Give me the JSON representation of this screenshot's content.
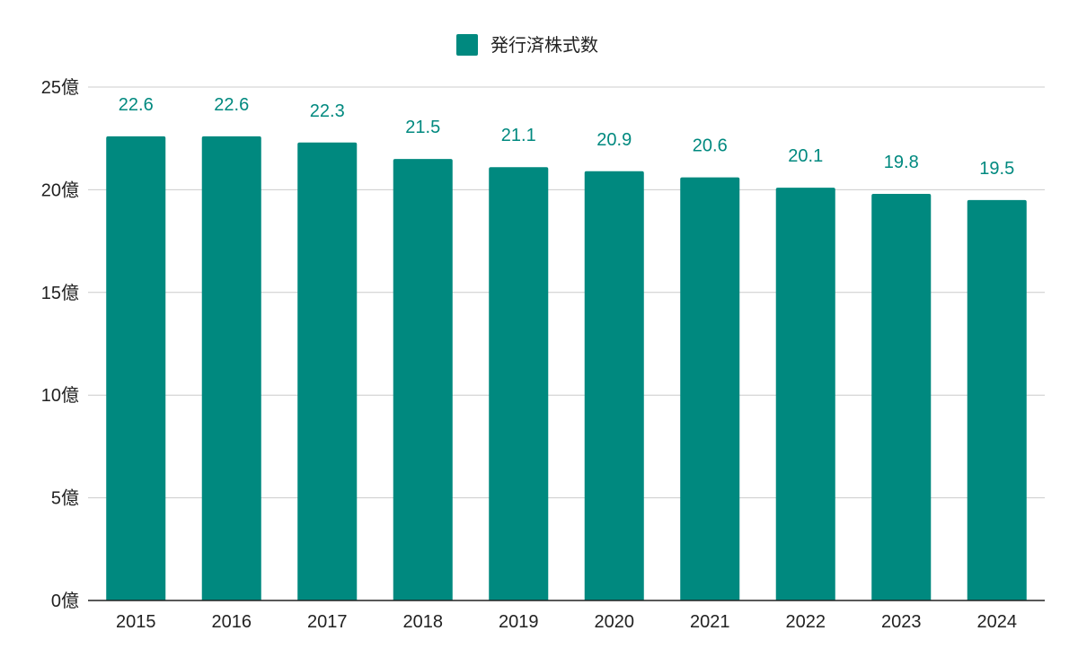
{
  "chart_data": {
    "type": "bar",
    "categories": [
      "2015",
      "2016",
      "2017",
      "2018",
      "2019",
      "2020",
      "2021",
      "2022",
      "2023",
      "2024"
    ],
    "series": [
      {
        "name": "発行済株式数",
        "values": [
          22.6,
          22.6,
          22.3,
          21.5,
          21.1,
          20.9,
          20.6,
          20.1,
          19.8,
          19.5
        ],
        "labels": [
          "22.6",
          "22.6",
          "22.3",
          "21.5",
          "21.1",
          "20.9",
          "20.6",
          "20.1",
          "19.8",
          "19.5"
        ],
        "color": "#00897f"
      }
    ],
    "yticks": [
      0,
      5,
      10,
      15,
      20,
      25
    ],
    "ytick_labels": [
      "0億",
      "5億",
      "10億",
      "15億",
      "20億",
      "25億"
    ],
    "ylim": [
      0,
      25
    ],
    "grid": true,
    "gridline_color": "#cccccc",
    "axis_color": "#222222",
    "legend_position": "top-center",
    "title": "",
    "xlabel": "",
    "ylabel": ""
  }
}
